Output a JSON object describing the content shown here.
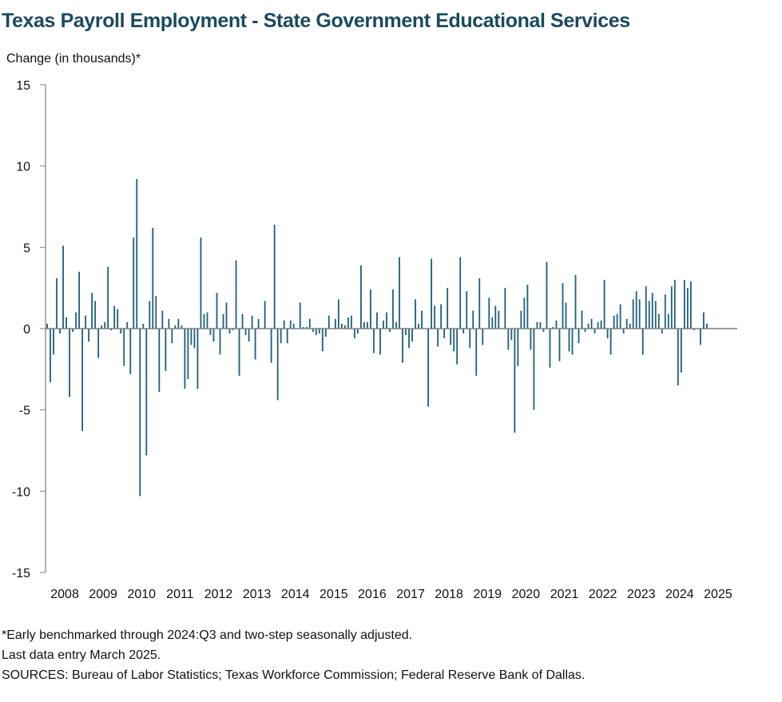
{
  "title": "Texas Payroll Employment - State Government Educational Services",
  "chart_data": {
    "type": "bar",
    "title": "Texas Payroll Employment - State Government Educational Services",
    "ylabel": "Change (in thousands)*",
    "xlabel": "",
    "ylim": [
      -15,
      15
    ],
    "yticks": [
      15,
      10,
      5,
      0,
      -5,
      -10,
      -15
    ],
    "xticks": [
      "2008",
      "2009",
      "2010",
      "2011",
      "2012",
      "2013",
      "2014",
      "2015",
      "2016",
      "2017",
      "2018",
      "2019",
      "2020",
      "2021",
      "2022",
      "2023",
      "2024",
      "2025"
    ],
    "x_start": "2008-01",
    "frequency": "monthly",
    "bar_color": "#1d5f79",
    "values": [
      0.3,
      -3.3,
      -1.6,
      3.1,
      -0.3,
      5.1,
      0.7,
      -4.2,
      -0.2,
      1.0,
      3.5,
      -6.3,
      0.8,
      -0.8,
      2.2,
      1.7,
      -1.8,
      0.2,
      0.4,
      3.8,
      -0.1,
      1.4,
      1.2,
      -0.3,
      -2.3,
      0.4,
      -2.8,
      5.6,
      9.2,
      -10.3,
      0.3,
      -7.8,
      1.7,
      6.2,
      2.0,
      -3.9,
      1.1,
      -2.6,
      0.6,
      -0.9,
      0.2,
      0.6,
      0.2,
      -3.7,
      -3.1,
      -1.0,
      -1.2,
      -3.7,
      5.6,
      0.9,
      1.0,
      -0.4,
      -0.8,
      2.2,
      -1.6,
      0.9,
      1.6,
      -0.3,
      -0.1,
      4.2,
      -2.9,
      0.9,
      -0.4,
      -0.8,
      0.8,
      -1.9,
      0.6,
      0.0,
      1.7,
      0.0,
      -2.1,
      6.4,
      -4.4,
      -0.9,
      0.5,
      -0.9,
      0.5,
      0.3,
      0.0,
      1.6,
      0.1,
      0.1,
      0.6,
      -0.2,
      -0.4,
      -0.3,
      -1.4,
      -0.5,
      0.8,
      0.0,
      0.6,
      1.8,
      0.3,
      0.2,
      0.7,
      0.8,
      -0.6,
      -0.3,
      3.9,
      0.4,
      0.4,
      2.4,
      -1.5,
      1.0,
      -1.6,
      0.5,
      1.0,
      -0.2,
      2.4,
      0.4,
      4.4,
      -2.1,
      -0.4,
      -1.2,
      -0.8,
      1.8,
      0.3,
      1.1,
      0.0,
      -4.8,
      4.3,
      1.4,
      -1.1,
      1.5,
      -0.6,
      2.5,
      -1.0,
      -1.4,
      -2.2,
      4.4,
      -0.3,
      2.3,
      -1.2,
      1.1,
      -2.9,
      3.1,
      -1.0,
      0.0,
      1.9,
      0.7,
      1.4,
      1.1,
      0.0,
      2.5,
      -1.3,
      -0.7,
      -6.4,
      -2.3,
      1.1,
      1.9,
      2.7,
      -1.3,
      -5.0,
      0.4,
      0.4,
      -0.2,
      4.1,
      -2.4,
      0.1,
      0.5,
      -2.0,
      2.8,
      1.6,
      -1.4,
      -1.6,
      3.3,
      -0.9,
      1.1,
      -0.2,
      0.3,
      0.6,
      -0.3,
      0.4,
      0.5,
      3.0,
      -0.6,
      -1.6,
      0.8,
      0.9,
      1.5,
      -0.3,
      0.6,
      0.3,
      1.8,
      2.3,
      1.8,
      -1.6,
      2.6,
      1.7,
      2.2,
      1.7,
      0.9,
      -0.3,
      2.1,
      0.9,
      2.6,
      3.0,
      -3.5,
      -2.7,
      3.0,
      2.5,
      2.9,
      -0.1,
      0.0,
      -1.0,
      1.0,
      0.3
    ]
  },
  "footnotes": [
    "*Early benchmarked through 2024:Q3 and two-step seasonally adjusted.",
    "Last data entry March 2025.",
    "SOURCES: Bureau of Labor Statistics; Texas Workforce Commission; Federal Reserve Bank of Dallas."
  ]
}
